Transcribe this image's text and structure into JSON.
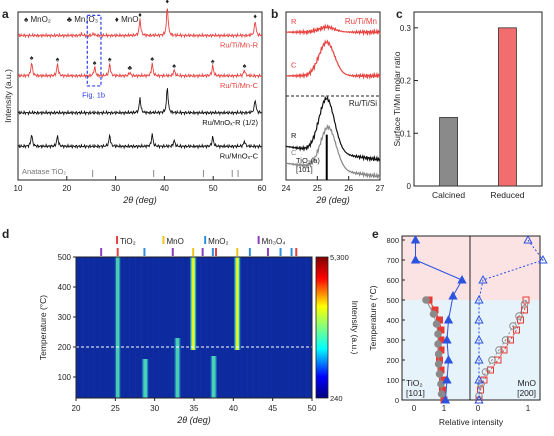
{
  "panel_labels": [
    "a",
    "b",
    "c",
    "d",
    "e"
  ],
  "chart_data": [
    {
      "panel": "a",
      "type": "line",
      "ylabel": "Intensity (a.u.)",
      "xlabel": "2θ (deg)",
      "xlim": [
        10,
        60
      ],
      "xticks": [
        10,
        20,
        30,
        40,
        50,
        60
      ],
      "legend": [
        {
          "symbol": "♠",
          "label": "MnO₂"
        },
        {
          "symbol": "♣",
          "label": "Mn₂O₃"
        },
        {
          "symbol": "♦",
          "label": "MnO"
        }
      ],
      "annotation": "Fig. 1b",
      "anatase_label": "Anatase TiO₂",
      "anatase_ticks": [
        25.3,
        37.8,
        48.0,
        53.9,
        55.1
      ],
      "series": [
        {
          "name": "Ru/Ti/Mn-R",
          "color": "#e8423f",
          "baseline": 0.86,
          "peaks": [
            [
              35.0,
              0.55,
              "♦"
            ],
            [
              40.6,
              1.0,
              "♦"
            ],
            [
              58.6,
              0.5,
              "♦"
            ],
            [
              25.5,
              0.06,
              ""
            ],
            [
              23.0,
              0.05,
              ""
            ]
          ]
        },
        {
          "name": "Ru/Ti/Mn-C",
          "color": "#e8423f",
          "baseline": 0.62,
          "peaks": [
            [
              12.8,
              0.45,
              "♠"
            ],
            [
              18.1,
              0.4,
              "♠"
            ],
            [
              25.7,
              0.3,
              "♠"
            ],
            [
              28.8,
              0.4,
              "♠"
            ],
            [
              32.9,
              0.12,
              "♣"
            ],
            [
              37.5,
              0.42,
              "♠"
            ],
            [
              42.0,
              0.2,
              "♠"
            ],
            [
              49.9,
              0.35,
              "♠"
            ],
            [
              56.4,
              0.2,
              "♠"
            ]
          ]
        },
        {
          "name": "Ru/MnOₓ-R (1/2)",
          "color": "#111111",
          "baseline": 0.4,
          "peaks": [
            [
              35.0,
              0.5,
              ""
            ],
            [
              40.6,
              0.85,
              ""
            ],
            [
              58.6,
              0.45,
              ""
            ]
          ]
        },
        {
          "name": "Ru/MnOₓ-C",
          "color": "#111111",
          "baseline": 0.2,
          "peaks": [
            [
              12.8,
              0.4,
              ""
            ],
            [
              18.1,
              0.35,
              ""
            ],
            [
              28.8,
              0.38,
              ""
            ],
            [
              37.5,
              0.42,
              ""
            ],
            [
              42.0,
              0.2,
              ""
            ],
            [
              49.9,
              0.32,
              ""
            ],
            [
              56.4,
              0.18,
              ""
            ]
          ]
        }
      ]
    },
    {
      "panel": "b",
      "type": "line",
      "xlabel": "2θ (deg)",
      "xlim": [
        24,
        27
      ],
      "xticks": [
        24,
        25,
        26,
        27
      ],
      "top_label": "Ru/Ti/Mn",
      "bottom_label": "Ru/Ti/Si",
      "ref_label": "TiO₂(a)\n[101]",
      "ref_position": 25.3,
      "series": [
        {
          "name": "R",
          "color": "#e8423f",
          "baseline": 0.88,
          "peak_center": 25.3,
          "peak_height": 0.03
        },
        {
          "name": "C",
          "color": "#e8423f",
          "baseline": 0.62,
          "peak_center": 25.3,
          "peak_height": 0.2
        },
        {
          "name": "R",
          "color": "#111111",
          "baseline": 0.2,
          "peak_center": 25.3,
          "peak_height": 0.32
        },
        {
          "name": "C",
          "color": "#888888",
          "baseline": 0.1,
          "peak_center": 25.35,
          "peak_height": 0.25
        }
      ]
    },
    {
      "panel": "c",
      "type": "bar",
      "ylabel": "Surface Ti/Mn molar ratio",
      "ylim": [
        0,
        0.33
      ],
      "yticks": [
        0,
        0.1,
        0.2,
        0.3
      ],
      "categories": [
        "Calcined",
        "Reduced"
      ],
      "values": [
        0.13,
        0.3
      ],
      "colors": [
        "#8a8a8a",
        "#f26d6d"
      ]
    },
    {
      "panel": "d",
      "type": "heatmap",
      "xlabel": "2θ (deg)",
      "ylabel": "Temperature (°C)",
      "xlim": [
        20,
        50
      ],
      "ylim": [
        30,
        500
      ],
      "xticks": [
        20,
        25,
        30,
        35,
        40,
        45,
        50
      ],
      "yticks": [
        100,
        200,
        300,
        400,
        500
      ],
      "colorbar_label": "Intensity (a.u.)",
      "colorbar_range": [
        240,
        5300
      ],
      "colorbar_ticks": [
        "5,300",
        "240"
      ],
      "dashed_temperature": 200,
      "reference_phases": [
        {
          "name": "TiO₂",
          "color": "#e8423f",
          "positions": [
            25.3,
            37.8,
            48.0
          ]
        },
        {
          "name": "MnO",
          "color": "#f0c419",
          "positions": [
            34.9,
            40.5
          ]
        },
        {
          "name": "MnO₂",
          "color": "#2f8fdd",
          "positions": [
            28.7,
            37.4,
            42.1,
            46.0,
            47.4
          ]
        },
        {
          "name": "Mn₃O₄",
          "color": "#8e3fbf",
          "positions": [
            23.2,
            32.3,
            36.1,
            44.4
          ]
        }
      ],
      "streaks": [
        {
          "x": 28.8,
          "t_from": 30,
          "t_to": 160,
          "strength": 0.7
        },
        {
          "x": 32.9,
          "t_from": 30,
          "t_to": 230,
          "strength": 0.45
        },
        {
          "x": 34.9,
          "t_from": 190,
          "t_to": 500,
          "strength": 1.0
        },
        {
          "x": 37.5,
          "t_from": 30,
          "t_to": 170,
          "strength": 0.6
        },
        {
          "x": 40.5,
          "t_from": 190,
          "t_to": 500,
          "strength": 1.0
        },
        {
          "x": 25.3,
          "t_from": 30,
          "t_to": 500,
          "strength": 0.15
        }
      ]
    },
    {
      "panel": "e",
      "type": "scatter",
      "ylabel": "Temperature (°C)",
      "xlabel": "Relative intensity",
      "ylim": [
        0,
        820
      ],
      "yticks": [
        0,
        100,
        200,
        300,
        400,
        500,
        600,
        700,
        800
      ],
      "left_label": "TiO₂\n[101]",
      "right_label": "MnO\n[200]",
      "left_xticks": [
        0,
        1
      ],
      "right_xticks": [
        0,
        1
      ],
      "tio2_red": [
        [
          0.5,
          500
        ],
        [
          0.7,
          450
        ],
        [
          0.85,
          400
        ],
        [
          0.9,
          350
        ],
        [
          0.9,
          300
        ],
        [
          0.9,
          250
        ],
        [
          0.85,
          200
        ],
        [
          0.9,
          150
        ],
        [
          0.95,
          100
        ],
        [
          0.95,
          50
        ],
        [
          1.0,
          0
        ]
      ],
      "tio2_grey": [
        [
          0.4,
          500
        ],
        [
          0.65,
          430
        ],
        [
          0.75,
          380
        ],
        [
          0.8,
          330
        ],
        [
          0.8,
          280
        ],
        [
          0.82,
          230
        ],
        [
          0.82,
          180
        ],
        [
          0.85,
          130
        ],
        [
          0.9,
          80
        ],
        [
          0.92,
          30
        ]
      ],
      "tio2_blue": [
        [
          0.05,
          800
        ],
        [
          0.05,
          700
        ],
        [
          1.6,
          600
        ],
        [
          1.3,
          520
        ],
        [
          1.15,
          400
        ],
        [
          1.1,
          300
        ],
        [
          1.15,
          200
        ],
        [
          1.1,
          100
        ],
        [
          1.05,
          0
        ]
      ],
      "mno_red": [
        [
          0.96,
          500
        ],
        [
          0.93,
          450
        ],
        [
          0.85,
          400
        ],
        [
          0.77,
          350
        ],
        [
          0.65,
          300
        ],
        [
          0.52,
          250
        ],
        [
          0.4,
          200
        ],
        [
          0.25,
          150
        ],
        [
          0.12,
          100
        ],
        [
          0.05,
          50
        ],
        [
          0.02,
          0
        ]
      ],
      "mno_grey": [
        [
          0.93,
          480
        ],
        [
          0.82,
          420
        ],
        [
          0.7,
          370
        ],
        [
          0.55,
          300
        ],
        [
          0.42,
          250
        ],
        [
          0.28,
          200
        ],
        [
          0.15,
          140
        ],
        [
          0.06,
          80
        ],
        [
          0.02,
          20
        ]
      ],
      "mno_blue": [
        [
          1.0,
          800
        ],
        [
          1.3,
          700
        ],
        [
          0.1,
          600
        ],
        [
          0.02,
          500
        ],
        [
          0.02,
          400
        ],
        [
          0.02,
          300
        ],
        [
          0.02,
          200
        ],
        [
          0.02,
          100
        ],
        [
          0.02,
          0
        ]
      ]
    }
  ]
}
